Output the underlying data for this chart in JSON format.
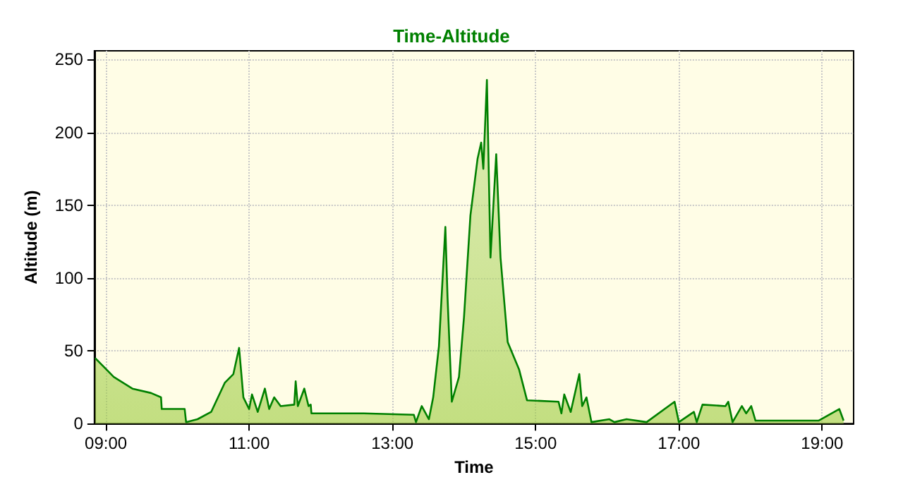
{
  "chart_data": {
    "type": "area",
    "title": "Time-Altitude",
    "xlabel": "Time",
    "ylabel": "Altitude (m)",
    "xlim": [
      8.84,
      19.44
    ],
    "xticks": [
      {
        "value": 9,
        "label": "09:00"
      },
      {
        "value": 11,
        "label": "11:00"
      },
      {
        "value": 13,
        "label": "13:00"
      },
      {
        "value": 15,
        "label": "15:00"
      },
      {
        "value": 17,
        "label": "17:00"
      },
      {
        "value": 19,
        "label": "19:00"
      }
    ],
    "ylim": [
      0,
      256
    ],
    "yticks": [
      0,
      50,
      100,
      150,
      200,
      250
    ],
    "grid": true,
    "marker": "none",
    "series": [
      {
        "color": "#008000",
        "x": [
          8.85,
          9.11,
          9.37,
          9.63,
          9.77,
          9.78,
          10.1,
          10.12,
          10.28,
          10.47,
          10.66,
          10.78,
          10.86,
          10.92,
          11.0,
          11.04,
          11.12,
          11.22,
          11.28,
          11.35,
          11.44,
          11.63,
          11.65,
          11.68,
          11.77,
          11.83,
          11.86,
          11.87,
          12.6,
          13.3,
          13.33,
          13.41,
          13.51,
          13.57,
          13.65,
          13.74,
          13.77,
          13.83,
          13.93,
          14.0,
          14.09,
          14.19,
          14.24,
          14.27,
          14.32,
          14.37,
          14.45,
          14.51,
          14.61,
          14.77,
          14.88,
          15.32,
          15.36,
          15.4,
          15.49,
          15.61,
          15.65,
          15.71,
          15.78,
          16.03,
          16.1,
          16.27,
          16.55,
          16.94,
          17.0,
          17.21,
          17.25,
          17.33,
          17.65,
          17.69,
          17.75,
          17.88,
          17.94,
          18.01,
          18.07,
          18.95,
          19.24,
          19.3
        ],
        "values": [
          45,
          32,
          24,
          21,
          18,
          10,
          10,
          1,
          3,
          8,
          28,
          34,
          52,
          18,
          10,
          20,
          8,
          24,
          10,
          18,
          12,
          13,
          29,
          12,
          24,
          12,
          13,
          7,
          7,
          6,
          1,
          12,
          3,
          18,
          53,
          135,
          87,
          15,
          32,
          73,
          143,
          182,
          193,
          175,
          236,
          114,
          185,
          114,
          56,
          37,
          16,
          15,
          7,
          20,
          8,
          34,
          12,
          18,
          1,
          3,
          1,
          3,
          1,
          15,
          1,
          8,
          1,
          13,
          12,
          15,
          1,
          12,
          7,
          12,
          2,
          2,
          10,
          2
        ]
      }
    ]
  }
}
